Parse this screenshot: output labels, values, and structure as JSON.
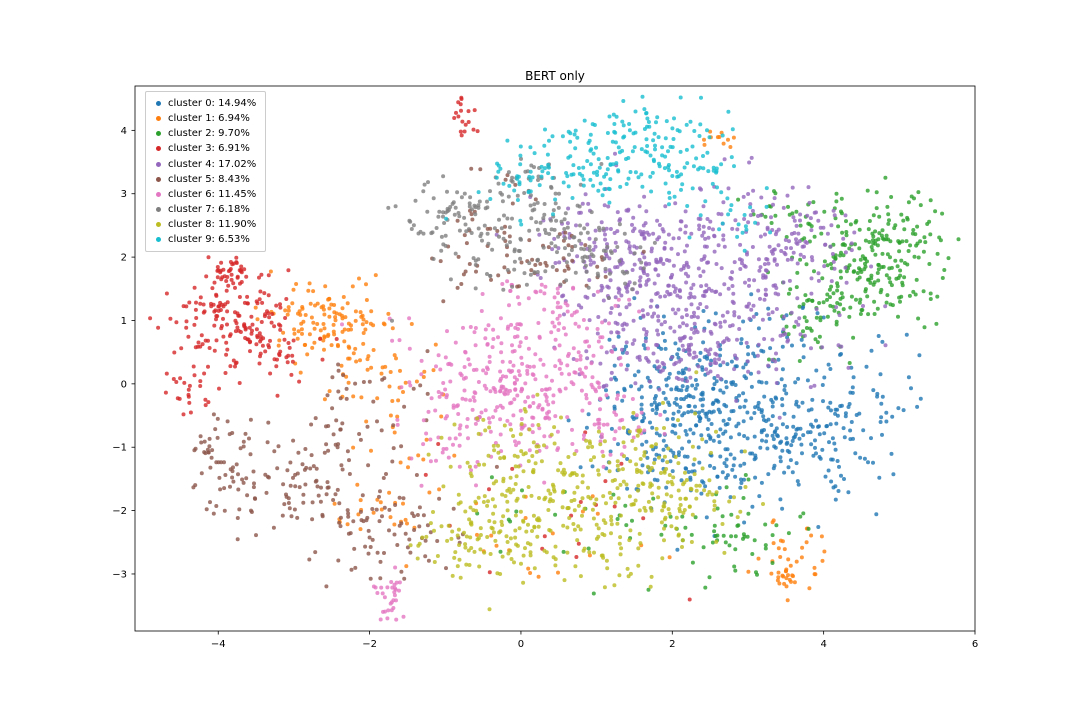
{
  "chart_data": {
    "type": "scatter",
    "title": "BERT only",
    "xlabel": "",
    "ylabel": "",
    "xlim": [
      -5.1,
      6.0
    ],
    "ylim": [
      -3.9,
      4.7
    ],
    "xticks": [
      -4,
      -2,
      0,
      2,
      4,
      6
    ],
    "yticks": [
      -3,
      -2,
      -1,
      0,
      1,
      2,
      3,
      4
    ],
    "grid": false,
    "legend_position": "upper left",
    "blob_format": "[center_x, center_y, sigma_x, sigma_y, fraction_of_cluster]",
    "clusters": [
      {
        "name": "cluster 0",
        "label": "cluster 0: 14.94%",
        "percent": 14.94,
        "color": "#1f77b4",
        "count": 598,
        "gaussian_blobs": [
          [
            2.6,
            -0.65,
            0.8,
            0.6,
            0.55
          ],
          [
            1.8,
            0.0,
            0.55,
            0.5,
            0.18
          ],
          [
            3.8,
            -0.9,
            0.5,
            0.5,
            0.15
          ],
          [
            4.5,
            -0.1,
            0.35,
            0.6,
            0.07
          ],
          [
            3.2,
            0.8,
            0.5,
            0.4,
            0.05
          ]
        ]
      },
      {
        "name": "cluster 1",
        "label": "cluster 1: 6.94%",
        "percent": 6.94,
        "color": "#ff7f0e",
        "count": 278,
        "gaussian_blobs": [
          [
            -2.55,
            0.95,
            0.42,
            0.38,
            0.45
          ],
          [
            -1.85,
            0.2,
            0.35,
            0.35,
            0.12
          ],
          [
            -2.0,
            -2.1,
            0.3,
            0.25,
            0.07
          ],
          [
            3.6,
            -2.7,
            0.25,
            0.3,
            0.12
          ],
          [
            3.5,
            -3.0,
            0.1,
            0.08,
            0.05
          ],
          [
            2.6,
            3.85,
            0.12,
            0.1,
            0.04
          ],
          [
            0.3,
            -2.5,
            0.9,
            0.4,
            0.08
          ],
          [
            -1.5,
            -0.9,
            0.3,
            0.5,
            0.07
          ]
        ]
      },
      {
        "name": "cluster 2",
        "label": "cluster 2: 9.70%",
        "percent": 9.7,
        "color": "#2ca02c",
        "count": 388,
        "gaussian_blobs": [
          [
            4.6,
            1.9,
            0.45,
            0.5,
            0.5
          ],
          [
            3.95,
            1.0,
            0.35,
            0.4,
            0.14
          ],
          [
            5.1,
            2.4,
            0.25,
            0.3,
            0.1
          ],
          [
            2.8,
            -2.4,
            0.4,
            0.35,
            0.12
          ],
          [
            1.2,
            -2.2,
            0.9,
            0.5,
            0.08
          ],
          [
            3.6,
            2.7,
            0.3,
            0.25,
            0.06
          ]
        ]
      },
      {
        "name": "cluster 3",
        "label": "cluster 3: 6.91%",
        "percent": 6.91,
        "color": "#d62728",
        "count": 276,
        "gaussian_blobs": [
          [
            -3.8,
            1.0,
            0.4,
            0.42,
            0.6
          ],
          [
            -3.87,
            1.8,
            0.1,
            0.12,
            0.1
          ],
          [
            -4.35,
            -0.05,
            0.12,
            0.25,
            0.08
          ],
          [
            -0.75,
            4.2,
            0.1,
            0.22,
            0.07
          ],
          [
            -3.2,
            0.5,
            0.3,
            0.3,
            0.08
          ],
          [
            0.3,
            -2.0,
            0.9,
            0.5,
            0.07
          ]
        ]
      },
      {
        "name": "cluster 4",
        "label": "cluster 4: 17.02%",
        "percent": 17.02,
        "color": "#9467bd",
        "count": 681,
        "gaussian_blobs": [
          [
            2.4,
            1.55,
            0.85,
            0.7,
            0.62
          ],
          [
            1.2,
            2.1,
            0.5,
            0.5,
            0.18
          ],
          [
            3.6,
            2.3,
            0.35,
            0.4,
            0.1
          ],
          [
            2.0,
            0.4,
            0.6,
            0.3,
            0.1
          ]
        ]
      },
      {
        "name": "cluster 5",
        "label": "cluster 5: 8.43%",
        "percent": 8.43,
        "color": "#8c564b",
        "count": 337,
        "gaussian_blobs": [
          [
            -2.7,
            -1.6,
            0.7,
            0.5,
            0.35
          ],
          [
            -3.85,
            -1.2,
            0.3,
            0.4,
            0.12
          ],
          [
            -4.15,
            -1.05,
            0.1,
            0.18,
            0.05
          ],
          [
            -1.6,
            -2.35,
            0.5,
            0.3,
            0.15
          ],
          [
            -2.2,
            -0.4,
            0.45,
            0.4,
            0.1
          ],
          [
            -0.4,
            2.3,
            0.5,
            0.45,
            0.13
          ],
          [
            0.5,
            1.85,
            0.4,
            0.3,
            0.1
          ]
        ]
      },
      {
        "name": "cluster 6",
        "label": "cluster 6: 11.45%",
        "percent": 11.45,
        "color": "#e377c2",
        "count": 458,
        "gaussian_blobs": [
          [
            0.0,
            0.0,
            0.7,
            0.6,
            0.66
          ],
          [
            0.4,
            1.05,
            0.5,
            0.35,
            0.12
          ],
          [
            -1.0,
            -0.6,
            0.35,
            0.35,
            0.08
          ],
          [
            -1.73,
            -3.35,
            0.1,
            0.2,
            0.07
          ],
          [
            1.1,
            -0.6,
            0.4,
            0.3,
            0.07
          ]
        ]
      },
      {
        "name": "cluster 7",
        "label": "cluster 7: 6.18%",
        "percent": 6.18,
        "color": "#7f7f7f",
        "count": 247,
        "gaussian_blobs": [
          [
            0.1,
            2.35,
            0.6,
            0.42,
            0.55
          ],
          [
            -0.9,
            2.7,
            0.35,
            0.3,
            0.2
          ],
          [
            1.1,
            1.95,
            0.35,
            0.28,
            0.15
          ],
          [
            0.2,
            3.2,
            0.35,
            0.2,
            0.1
          ]
        ]
      },
      {
        "name": "cluster 8",
        "label": "cluster 8: 11.90%",
        "percent": 11.9,
        "color": "#bcbd22",
        "count": 476,
        "gaussian_blobs": [
          [
            0.6,
            -1.9,
            0.85,
            0.5,
            0.45
          ],
          [
            1.6,
            -1.15,
            0.5,
            0.4,
            0.15
          ],
          [
            -0.5,
            -2.4,
            0.5,
            0.3,
            0.15
          ],
          [
            0.0,
            -1.05,
            0.5,
            0.3,
            0.1
          ],
          [
            2.2,
            -1.8,
            0.4,
            0.3,
            0.1
          ],
          [
            1.0,
            -2.8,
            0.5,
            0.25,
            0.05
          ]
        ]
      },
      {
        "name": "cluster 9",
        "label": "cluster 9: 6.53%",
        "percent": 6.53,
        "color": "#17becf",
        "count": 261,
        "gaussian_blobs": [
          [
            1.25,
            3.55,
            0.7,
            0.4,
            0.6
          ],
          [
            0.1,
            3.15,
            0.35,
            0.25,
            0.12
          ],
          [
            2.3,
            3.2,
            0.4,
            0.3,
            0.15
          ],
          [
            1.8,
            4.1,
            0.4,
            0.2,
            0.08
          ],
          [
            3.0,
            2.6,
            0.2,
            0.2,
            0.05
          ]
        ]
      }
    ]
  }
}
